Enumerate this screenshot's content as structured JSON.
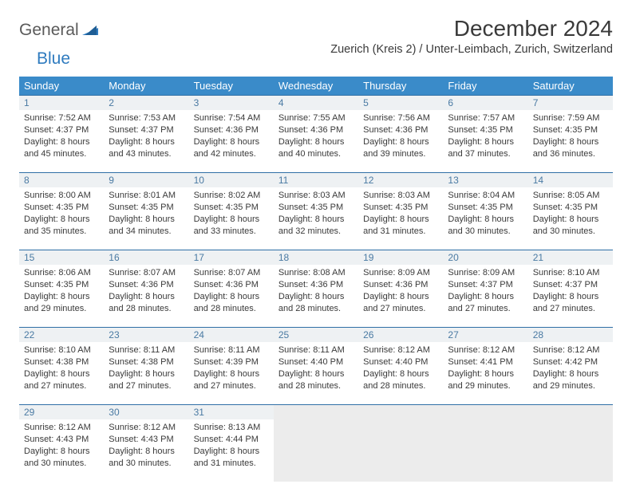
{
  "logo": {
    "part1": "General",
    "part2": "Blue"
  },
  "title": "December 2024",
  "location": "Zuerich (Kreis 2) / Unter-Leimbach, Zurich, Switzerland",
  "header_bg": "#3a8bc9",
  "daynum_bg": "#eef1f3",
  "daynum_border": "#2f6fa6",
  "empty_bg": "#ececec",
  "text_color": "#3a3a3a",
  "daynum_color": "#4a7aa3",
  "days": [
    "Sunday",
    "Monday",
    "Tuesday",
    "Wednesday",
    "Thursday",
    "Friday",
    "Saturday"
  ],
  "weeks": [
    [
      {
        "n": "1",
        "sr": "7:52 AM",
        "ss": "4:37 PM",
        "dl": "8 hours and 45 minutes."
      },
      {
        "n": "2",
        "sr": "7:53 AM",
        "ss": "4:37 PM",
        "dl": "8 hours and 43 minutes."
      },
      {
        "n": "3",
        "sr": "7:54 AM",
        "ss": "4:36 PM",
        "dl": "8 hours and 42 minutes."
      },
      {
        "n": "4",
        "sr": "7:55 AM",
        "ss": "4:36 PM",
        "dl": "8 hours and 40 minutes."
      },
      {
        "n": "5",
        "sr": "7:56 AM",
        "ss": "4:36 PM",
        "dl": "8 hours and 39 minutes."
      },
      {
        "n": "6",
        "sr": "7:57 AM",
        "ss": "4:35 PM",
        "dl": "8 hours and 37 minutes."
      },
      {
        "n": "7",
        "sr": "7:59 AM",
        "ss": "4:35 PM",
        "dl": "8 hours and 36 minutes."
      }
    ],
    [
      {
        "n": "8",
        "sr": "8:00 AM",
        "ss": "4:35 PM",
        "dl": "8 hours and 35 minutes."
      },
      {
        "n": "9",
        "sr": "8:01 AM",
        "ss": "4:35 PM",
        "dl": "8 hours and 34 minutes."
      },
      {
        "n": "10",
        "sr": "8:02 AM",
        "ss": "4:35 PM",
        "dl": "8 hours and 33 minutes."
      },
      {
        "n": "11",
        "sr": "8:03 AM",
        "ss": "4:35 PM",
        "dl": "8 hours and 32 minutes."
      },
      {
        "n": "12",
        "sr": "8:03 AM",
        "ss": "4:35 PM",
        "dl": "8 hours and 31 minutes."
      },
      {
        "n": "13",
        "sr": "8:04 AM",
        "ss": "4:35 PM",
        "dl": "8 hours and 30 minutes."
      },
      {
        "n": "14",
        "sr": "8:05 AM",
        "ss": "4:35 PM",
        "dl": "8 hours and 30 minutes."
      }
    ],
    [
      {
        "n": "15",
        "sr": "8:06 AM",
        "ss": "4:35 PM",
        "dl": "8 hours and 29 minutes."
      },
      {
        "n": "16",
        "sr": "8:07 AM",
        "ss": "4:36 PM",
        "dl": "8 hours and 28 minutes."
      },
      {
        "n": "17",
        "sr": "8:07 AM",
        "ss": "4:36 PM",
        "dl": "8 hours and 28 minutes."
      },
      {
        "n": "18",
        "sr": "8:08 AM",
        "ss": "4:36 PM",
        "dl": "8 hours and 28 minutes."
      },
      {
        "n": "19",
        "sr": "8:09 AM",
        "ss": "4:36 PM",
        "dl": "8 hours and 27 minutes."
      },
      {
        "n": "20",
        "sr": "8:09 AM",
        "ss": "4:37 PM",
        "dl": "8 hours and 27 minutes."
      },
      {
        "n": "21",
        "sr": "8:10 AM",
        "ss": "4:37 PM",
        "dl": "8 hours and 27 minutes."
      }
    ],
    [
      {
        "n": "22",
        "sr": "8:10 AM",
        "ss": "4:38 PM",
        "dl": "8 hours and 27 minutes."
      },
      {
        "n": "23",
        "sr": "8:11 AM",
        "ss": "4:38 PM",
        "dl": "8 hours and 27 minutes."
      },
      {
        "n": "24",
        "sr": "8:11 AM",
        "ss": "4:39 PM",
        "dl": "8 hours and 27 minutes."
      },
      {
        "n": "25",
        "sr": "8:11 AM",
        "ss": "4:40 PM",
        "dl": "8 hours and 28 minutes."
      },
      {
        "n": "26",
        "sr": "8:12 AM",
        "ss": "4:40 PM",
        "dl": "8 hours and 28 minutes."
      },
      {
        "n": "27",
        "sr": "8:12 AM",
        "ss": "4:41 PM",
        "dl": "8 hours and 29 minutes."
      },
      {
        "n": "28",
        "sr": "8:12 AM",
        "ss": "4:42 PM",
        "dl": "8 hours and 29 minutes."
      }
    ],
    [
      {
        "n": "29",
        "sr": "8:12 AM",
        "ss": "4:43 PM",
        "dl": "8 hours and 30 minutes."
      },
      {
        "n": "30",
        "sr": "8:12 AM",
        "ss": "4:43 PM",
        "dl": "8 hours and 30 minutes."
      },
      {
        "n": "31",
        "sr": "8:13 AM",
        "ss": "4:44 PM",
        "dl": "8 hours and 31 minutes."
      },
      null,
      null,
      null,
      null
    ]
  ],
  "labels": {
    "sunrise": "Sunrise: ",
    "sunset": "Sunset: ",
    "daylight": "Daylight: "
  }
}
